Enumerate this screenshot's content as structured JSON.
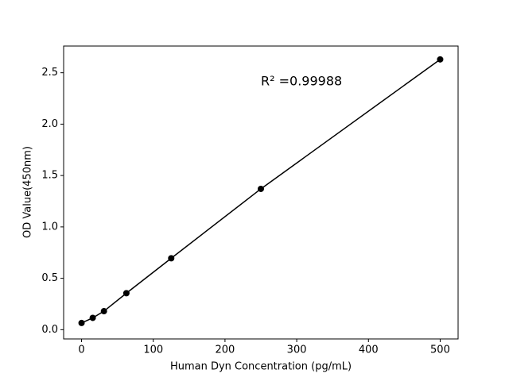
{
  "chart_data": {
    "type": "scatter-line",
    "x_label": "Human Dyn Concentration (pg/mL)",
    "y_label": "OD Value(450nm)",
    "annotation": "R² =0.99988",
    "x": [
      0,
      15.6,
      31.2,
      62.5,
      125,
      250,
      500
    ],
    "values": [
      0.065,
      0.115,
      0.18,
      0.355,
      0.695,
      1.37,
      2.63
    ],
    "color": "#000000",
    "xlim": [
      -25,
      525
    ],
    "xticks": [
      0,
      100,
      200,
      300,
      400,
      500
    ],
    "ylim": [
      -0.09,
      2.76
    ],
    "yticks": [
      {
        "value": 0,
        "label": "0.0"
      },
      0.5,
      {
        "value": 1,
        "label": "1.0"
      },
      1.5,
      {
        "value": 2,
        "label": "2.0"
      },
      2.5
    ]
  }
}
